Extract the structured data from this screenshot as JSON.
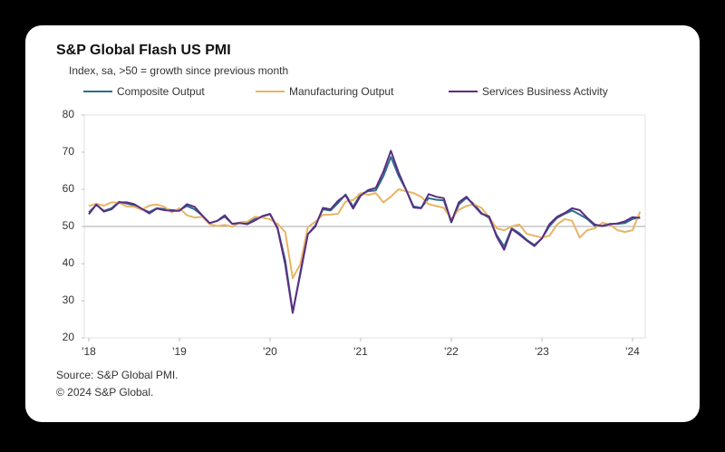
{
  "chart_data": {
    "type": "line",
    "title": "S&P Global Flash US PMI",
    "subtitle": "Index, sa, >50 = growth  since previous  month",
    "notes": [
      "Source: S&P Global PMI.",
      "© 2024 S&P Global."
    ],
    "categories": [
      "'18",
      null,
      null,
      null,
      null,
      null,
      null,
      null,
      null,
      null,
      null,
      null,
      "'19",
      null,
      null,
      null,
      null,
      null,
      null,
      null,
      null,
      null,
      null,
      null,
      "'20",
      null,
      null,
      null,
      null,
      null,
      null,
      null,
      null,
      null,
      null,
      null,
      "'21",
      null,
      null,
      null,
      null,
      null,
      null,
      null,
      null,
      null,
      null,
      null,
      "'22",
      null,
      null,
      null,
      null,
      null,
      null,
      null,
      null,
      null,
      null,
      null,
      "'23",
      null,
      null,
      null,
      null,
      null,
      null,
      null,
      null,
      null,
      null,
      null,
      "'24",
      null
    ],
    "series": [
      {
        "name": "Composite Output",
        "color": "#2b6e8c",
        "values": [
          53.8,
          55.8,
          54.2,
          54.9,
          56.6,
          56.2,
          55.7,
          54.7,
          53.9,
          54.9,
          54.7,
          54.4,
          54.4,
          55.5,
          54.6,
          53.0,
          50.9,
          51.5,
          52.6,
          50.7,
          51.0,
          50.9,
          52.0,
          52.7,
          53.3,
          49.6,
          40.9,
          27.0,
          37.0,
          47.9,
          50.3,
          54.6,
          54.3,
          56.3,
          58.6,
          55.3,
          58.7,
          59.5,
          59.7,
          63.5,
          68.7,
          63.7,
          59.9,
          55.4,
          55.0,
          57.6,
          57.2,
          57.0,
          51.1,
          55.9,
          57.7,
          56.0,
          53.6,
          52.3,
          47.7,
          44.6,
          49.5,
          48.2,
          46.4,
          45.0,
          46.8,
          50.1,
          52.3,
          53.4,
          54.3,
          53.2,
          52.0,
          50.2,
          50.2,
          50.7,
          50.7,
          50.9,
          52.0,
          52.5
        ]
      },
      {
        "name": "Manufacturing Output",
        "color": "#e8b466",
        "values": [
          55.5,
          56.1,
          55.6,
          56.5,
          56.4,
          55.4,
          55.3,
          54.5,
          55.6,
          55.9,
          55.3,
          53.8,
          54.9,
          53.0,
          52.4,
          52.6,
          50.6,
          50.1,
          50.4,
          49.9,
          51.1,
          51.3,
          52.6,
          52.4,
          51.9,
          50.7,
          48.5,
          36.1,
          39.8,
          49.8,
          51.3,
          53.1,
          53.2,
          53.4,
          56.7,
          57.1,
          59.0,
          58.5,
          59.0,
          56.5,
          58.0,
          60.0,
          59.5,
          59.0,
          58.0,
          56.0,
          55.5,
          55.0,
          52.0,
          54.5,
          55.5,
          56.0,
          55.0,
          52.5,
          49.5,
          49.0,
          50.0,
          50.5,
          48.0,
          47.5,
          47.0,
          47.5,
          50.5,
          52.0,
          51.5,
          47.0,
          49.0,
          49.5,
          51.0,
          50.5,
          49.0,
          48.5,
          49.0,
          54.0
        ]
      },
      {
        "name": "Services Business Activity",
        "color": "#5b2d82",
        "values": [
          53.3,
          55.9,
          54.0,
          54.6,
          56.5,
          56.5,
          56.0,
          54.8,
          53.5,
          54.8,
          54.4,
          54.2,
          54.2,
          56.0,
          55.3,
          53.0,
          50.9,
          51.5,
          53.0,
          50.7,
          50.9,
          50.6,
          51.6,
          52.8,
          53.4,
          49.4,
          39.8,
          26.7,
          37.5,
          47.9,
          50.0,
          55.0,
          54.6,
          56.9,
          58.4,
          54.8,
          58.3,
          59.8,
          60.4,
          64.7,
          70.4,
          64.6,
          59.9,
          55.1,
          54.9,
          58.7,
          58.0,
          57.6,
          51.2,
          56.5,
          58.0,
          55.6,
          53.4,
          52.7,
          47.3,
          43.7,
          49.3,
          47.8,
          46.2,
          44.7,
          46.8,
          50.6,
          52.6,
          53.6,
          54.9,
          54.4,
          52.3,
          50.5,
          50.1,
          50.6,
          50.8,
          51.4,
          52.5,
          52.3
        ]
      }
    ],
    "ylim": [
      20,
      80
    ],
    "yticks": [
      20,
      30,
      40,
      50,
      60,
      70,
      80
    ],
    "reference_line": 50
  }
}
